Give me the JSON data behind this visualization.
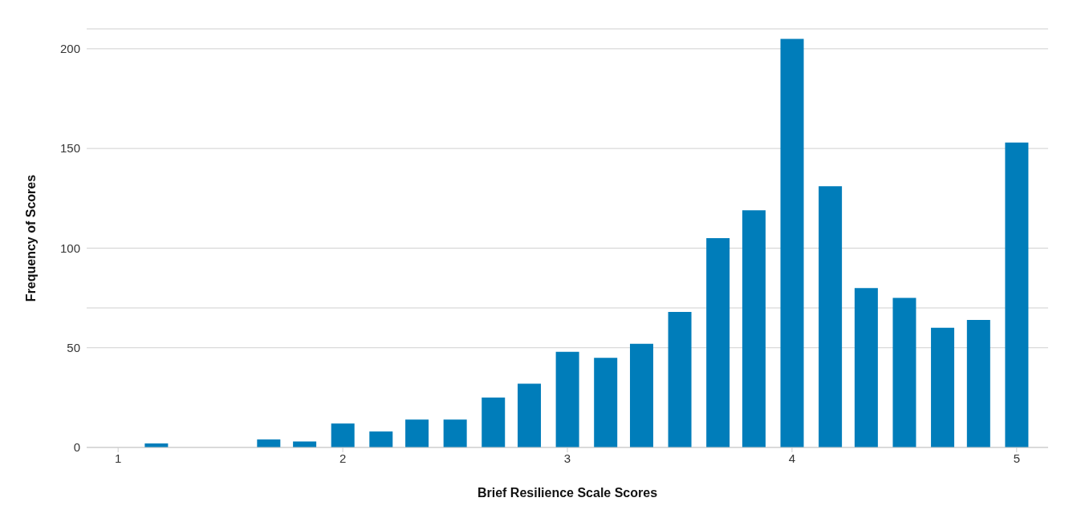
{
  "chart_data": {
    "type": "bar",
    "xlabel": "Brief Resilience Scale Scores",
    "ylabel": "Frequency of Scores",
    "x": [
      1.17,
      1.67,
      1.83,
      2,
      2.17,
      2.33,
      2.5,
      2.67,
      2.83,
      3,
      3.17,
      3.33,
      3.5,
      3.67,
      3.83,
      4,
      4.17,
      4.33,
      4.5,
      4.67,
      4.83,
      5
    ],
    "values": [
      2,
      4,
      3,
      12,
      8,
      14,
      14,
      25,
      32,
      48,
      45,
      52,
      68,
      105,
      119,
      205,
      131,
      80,
      75,
      60,
      64,
      153
    ],
    "color": "#007dba",
    "xlim": [
      0.86,
      5.14
    ],
    "xticks": [
      1,
      2,
      3,
      4,
      5
    ],
    "ylim": [
      0,
      210
    ],
    "yticks": [
      0,
      50,
      {
        "value": 70,
        "label": null
      },
      100,
      150,
      200
    ],
    "grid": "y",
    "legend": false
  }
}
